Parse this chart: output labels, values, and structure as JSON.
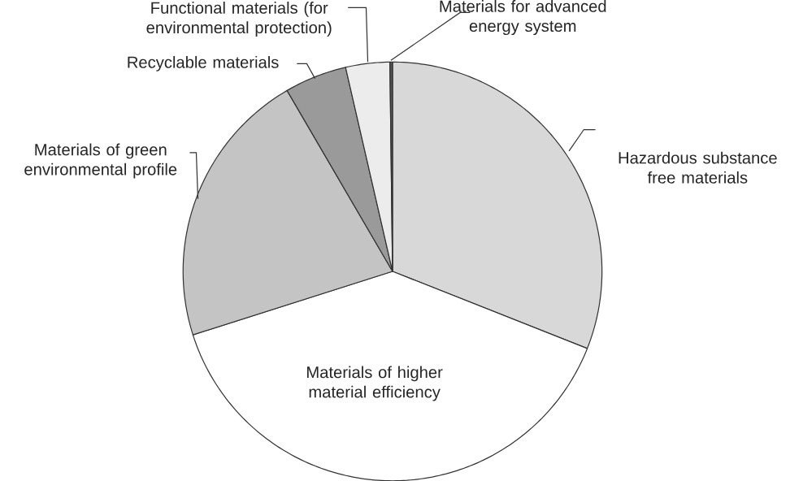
{
  "chart_data": {
    "type": "pie",
    "categories": [
      "Hazardous substance free materials",
      "Materials of higher material efficiency",
      "Materials of green environmental profile",
      "Recyclable materials",
      "Functional materials (for environmental protection)",
      "Materials for advanced energy system"
    ],
    "values": [
      31.0,
      39.1,
      21.5,
      4.8,
      3.4,
      0.2
    ],
    "colors": [
      "#d8d8d8",
      "#ffffff",
      "#c4c4c4",
      "#9a9a9a",
      "#ececec",
      "#555555"
    ]
  }
}
